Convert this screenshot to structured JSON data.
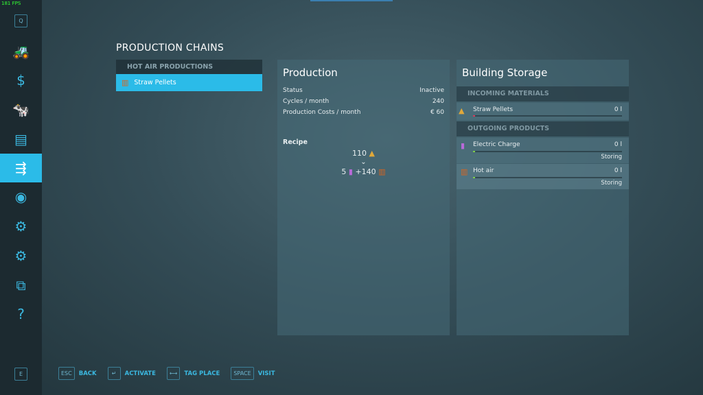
{
  "fps": "181 FPS",
  "sidebar": {
    "top_key": "Q",
    "bottom_key": "E",
    "items": [
      {
        "icon": "tractor-icon",
        "glyph": "🚜"
      },
      {
        "icon": "dollar-icon",
        "glyph": "$"
      },
      {
        "icon": "cow-icon",
        "glyph": "🐄"
      },
      {
        "icon": "contracts-icon",
        "glyph": "▤"
      },
      {
        "icon": "production-icon",
        "glyph": "⇶",
        "active": true
      },
      {
        "icon": "map-icon",
        "glyph": "◉"
      },
      {
        "icon": "workers-icon",
        "glyph": "⚙"
      },
      {
        "icon": "settings-icon",
        "glyph": "⚙"
      },
      {
        "icon": "hierarchy-icon",
        "glyph": "⧉"
      },
      {
        "icon": "help-book-icon",
        "glyph": "?"
      }
    ]
  },
  "title": "PRODUCTION CHAINS",
  "list": {
    "header": "HOT AIR PRODUCTIONS",
    "items": [
      {
        "label": "Straw Pellets"
      }
    ]
  },
  "production": {
    "title": "Production",
    "rows": [
      {
        "label": "Status",
        "value": "Inactive"
      },
      {
        "label": "Cycles / month",
        "value": "240"
      },
      {
        "label": "Production Costs / month",
        "value": "€ 60"
      }
    ],
    "recipe_label": "Recipe",
    "input": "110",
    "out1": "5",
    "out2": "+140"
  },
  "storage": {
    "title": "Building Storage",
    "incoming_header": "INCOMING MATERIALS",
    "outgoing_header": "OUTGOING PRODUCTS",
    "incoming": [
      {
        "name": "Straw Pellets",
        "value": "0 l",
        "color": "#d63a5a"
      }
    ],
    "outgoing": [
      {
        "name": "Electric Charge",
        "value": "0 l",
        "status": "Storing",
        "color": "#7fd04a"
      },
      {
        "name": "Hot air",
        "value": "0 l",
        "status": "Storing",
        "color": "#7fd04a"
      }
    ]
  },
  "hints": [
    {
      "key": "ESC",
      "label": "BACK"
    },
    {
      "key": "↵",
      "label": "ACTIVATE"
    },
    {
      "key": "⟷",
      "label": "TAG PLACE"
    },
    {
      "key": "SPACE",
      "label": "VISIT"
    }
  ]
}
